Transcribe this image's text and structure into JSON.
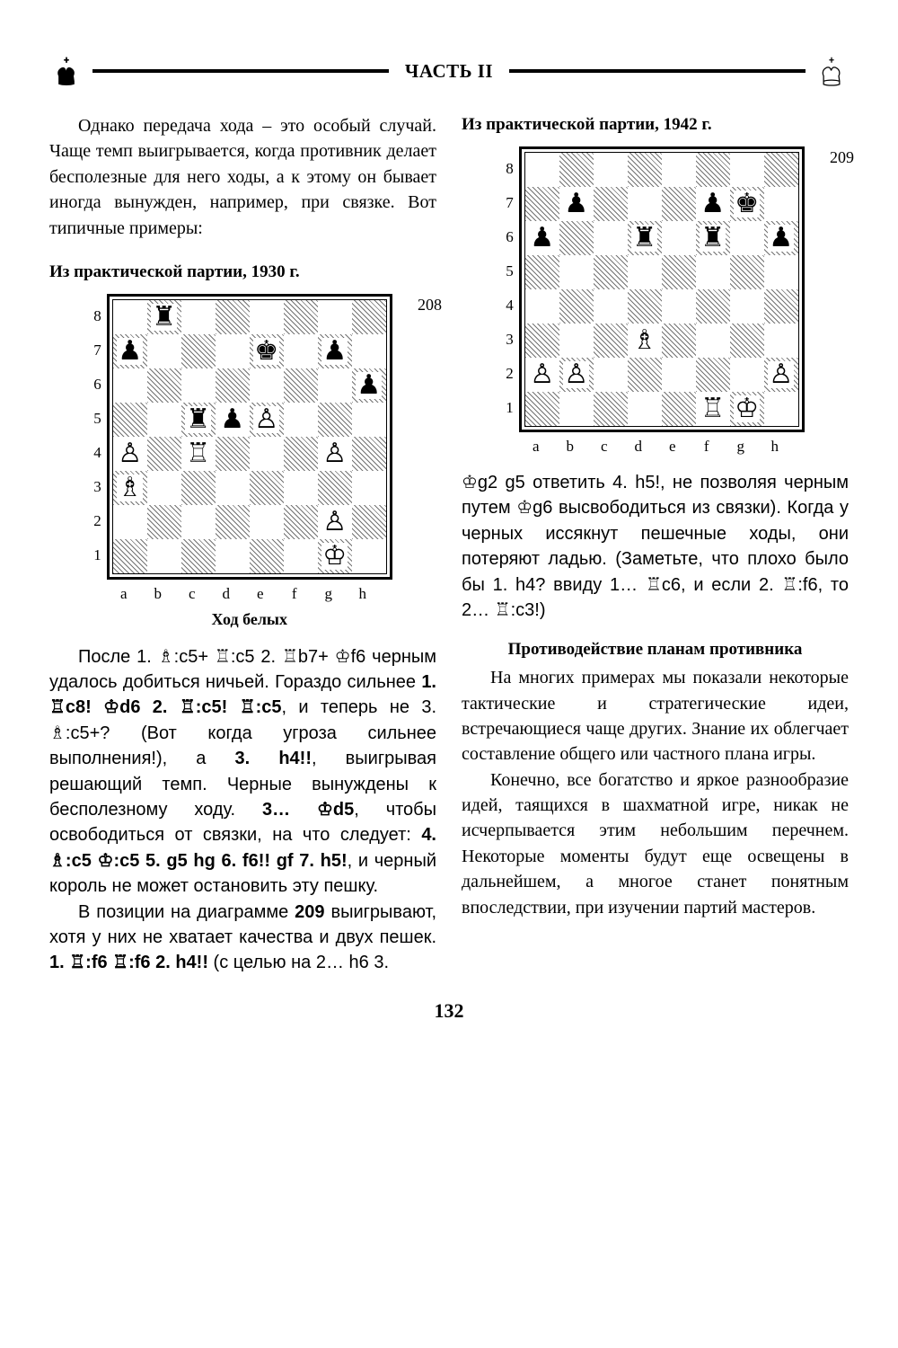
{
  "header": {
    "title": "ЧАСТЬ II"
  },
  "page_number": "132",
  "left": {
    "intro": "Однако передача хода – это особый случай. Чаще темп выигрывается, когда противник делает бесполезные для него ходы, а к этому он бывает иногда вынужден, например, при связке. Вот типичные примеры:",
    "caption1": "Из практической партии, 1930 г.",
    "diagram1": {
      "number": "208",
      "move_caption": "Ход белых",
      "ranks": [
        "8",
        "7",
        "6",
        "5",
        "4",
        "3",
        "2",
        "1"
      ],
      "files": [
        "a",
        "b",
        "c",
        "d",
        "e",
        "f",
        "g",
        "h"
      ],
      "rows": [
        [
          "",
          "♜",
          "",
          "",
          "",
          "",
          "",
          ""
        ],
        [
          "♟",
          "",
          "",
          "",
          "♚",
          "",
          "♟",
          ""
        ],
        [
          "",
          "",
          "",
          "",
          "",
          "",
          "",
          "♟"
        ],
        [
          "",
          "",
          "♜",
          "♟",
          "♙",
          "",
          "",
          ""
        ],
        [
          "♙",
          "",
          "♖",
          "",
          "",
          "",
          "♙",
          ""
        ],
        [
          "♗",
          "",
          "",
          "",
          "",
          "",
          "",
          ""
        ],
        [
          "",
          "",
          "",
          "",
          "",
          "",
          "♙",
          ""
        ],
        [
          "",
          "",
          "",
          "",
          "",
          "",
          "♔",
          ""
        ]
      ]
    },
    "para2_html": "После 1. ♗:c5+ ♖:c5 2. ♖b7+ ♔f6 черным удалось добиться ничьей. Гораздо сильнее <b>1. ♖c8! ♔d6 2. ♖:c5! ♖:c5</b>, и теперь не 3. ♗:c5+? (Вот когда угроза сильнее выполнения!), а <b>3. h4!!</b>, выигрывая решающий темп. Черные вынуждены к бесполезному ходу. <b>3… ♔d5</b>, чтобы освободиться от связки, на что следует: <b>4. ♗:c5 ♔:c5 5. g5 hg 6. f6!! gf 7. h5!</b>, и черный король не может остановить эту пешку.",
    "para3_html": "В позиции на диаграмме <b>209</b> выигрывают, хотя у них не хватает качества и двух пешек. <b>1. ♖:f6 ♖:f6 2. h4!!</b> (с целью на 2… h6 3."
  },
  "right": {
    "caption2": "Из практической партии, 1942 г.",
    "diagram2": {
      "number": "209",
      "ranks": [
        "8",
        "7",
        "6",
        "5",
        "4",
        "3",
        "2",
        "1"
      ],
      "files": [
        "a",
        "b",
        "c",
        "d",
        "e",
        "f",
        "g",
        "h"
      ],
      "rows": [
        [
          "",
          "",
          "",
          "",
          "",
          "",
          "",
          ""
        ],
        [
          "",
          "♟",
          "",
          "",
          "",
          "♟",
          "♚",
          ""
        ],
        [
          "♟",
          "",
          "",
          "♜",
          "",
          "♜",
          "",
          "♟"
        ],
        [
          "",
          "",
          "",
          "",
          "",
          "",
          "",
          ""
        ],
        [
          "",
          "",
          "",
          "",
          "",
          "",
          "",
          ""
        ],
        [
          "",
          "",
          "",
          "♗",
          "",
          "",
          "",
          ""
        ],
        [
          "♙",
          "♙",
          "",
          "",
          "",
          "",
          "",
          "♙"
        ],
        [
          "",
          "",
          "",
          "",
          "",
          "♖",
          "♔",
          ""
        ]
      ]
    },
    "para1_html": "♔g2 g5 ответить 4. h5!, не позволяя черным путем ♔g6 высвободиться из связки). Когда у черных иссякнут пешечные ходы, они потеряют ладью. (Заметьте, что плохо было бы 1. h4? ввиду 1… ♖c6, и если 2. ♖:f6, то 2… ♖:c3!)",
    "subheading": "Противодействие планам противника",
    "para2": "На многих примерах мы показали некоторые тактические и стратегические идеи, встречающиеся чаще других. Знание их облегчает составление общего или частного плана игры.",
    "para3": "Конечно, все богатство и яркое разнообразие идей, таящихся в шахматной игре, никак не исчерпывается этим небольшим перечнем. Некоторые моменты будут еще освещены в дальнейшем, а многое станет понятным впоследствии, при изучении партий мастеров."
  }
}
